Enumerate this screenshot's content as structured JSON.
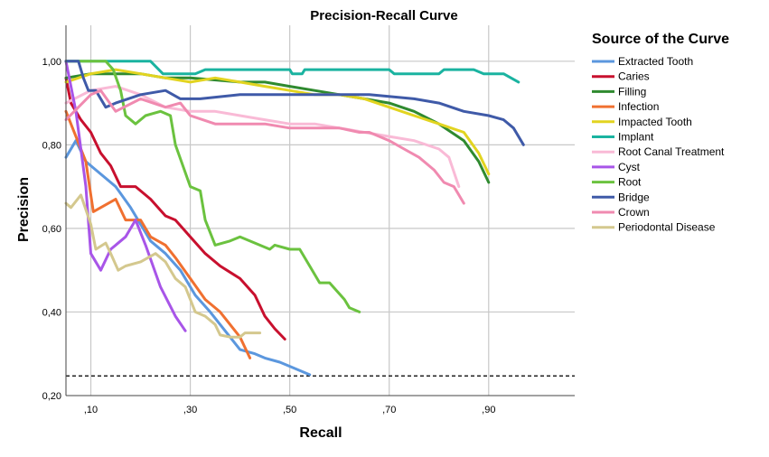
{
  "chart_data": {
    "type": "line",
    "title": "Precision-Recall Curve",
    "xlabel": "Recall",
    "ylabel": "Precision",
    "xlim": [
      0.05,
      1.073
    ],
    "ylim": [
      0.2,
      1.086
    ],
    "xticks": [
      0.1,
      0.3,
      0.5,
      0.7,
      0.9
    ],
    "xtick_labels": [
      ",10",
      ",30",
      ",50",
      ",70",
      ",90"
    ],
    "yticks": [
      0.2,
      0.4,
      0.6,
      0.8,
      1.0
    ],
    "ytick_labels": [
      "0,20",
      "0,40",
      "0,60",
      "0,80",
      "1,00"
    ],
    "grid": true,
    "baseline": 0.247,
    "legend_title": "Source of the Curve",
    "legend_position": "right",
    "series": [
      {
        "name": "Extracted Tooth",
        "color": "#5b97de",
        "x": [
          0.05,
          0.07,
          0.09,
          0.11,
          0.15,
          0.18,
          0.2,
          0.22,
          0.25,
          0.28,
          0.31,
          0.34,
          0.36,
          0.38,
          0.4,
          0.43,
          0.45,
          0.48,
          0.5,
          0.52,
          0.54
        ],
        "y": [
          0.77,
          0.81,
          0.76,
          0.74,
          0.7,
          0.65,
          0.61,
          0.57,
          0.54,
          0.5,
          0.44,
          0.4,
          0.37,
          0.34,
          0.31,
          0.3,
          0.29,
          0.28,
          0.27,
          0.26,
          0.25
        ]
      },
      {
        "name": "Caries",
        "color": "#c8102e",
        "x": [
          0.05,
          0.06,
          0.08,
          0.1,
          0.12,
          0.14,
          0.16,
          0.19,
          0.22,
          0.25,
          0.27,
          0.3,
          0.33,
          0.36,
          0.4,
          0.43,
          0.45,
          0.47,
          0.49
        ],
        "y": [
          0.96,
          0.9,
          0.86,
          0.83,
          0.78,
          0.75,
          0.7,
          0.7,
          0.67,
          0.63,
          0.62,
          0.58,
          0.54,
          0.51,
          0.48,
          0.44,
          0.39,
          0.36,
          0.335
        ]
      },
      {
        "name": "Filling",
        "color": "#2f8a2f",
        "x": [
          0.05,
          0.1,
          0.15,
          0.2,
          0.25,
          0.3,
          0.4,
          0.45,
          0.5,
          0.55,
          0.6,
          0.65,
          0.7,
          0.75,
          0.8,
          0.85,
          0.88,
          0.9
        ],
        "y": [
          0.96,
          0.97,
          0.97,
          0.97,
          0.96,
          0.96,
          0.95,
          0.95,
          0.94,
          0.93,
          0.92,
          0.91,
          0.9,
          0.88,
          0.85,
          0.81,
          0.76,
          0.71
        ]
      },
      {
        "name": "Infection",
        "color": "#f07030",
        "x": [
          0.05,
          0.07,
          0.09,
          0.1,
          0.105,
          0.12,
          0.15,
          0.17,
          0.2,
          0.22,
          0.25,
          0.27,
          0.3,
          0.33,
          0.36,
          0.38,
          0.4,
          0.42
        ],
        "y": [
          0.88,
          0.82,
          0.76,
          0.68,
          0.64,
          0.65,
          0.67,
          0.62,
          0.62,
          0.58,
          0.56,
          0.53,
          0.48,
          0.43,
          0.4,
          0.37,
          0.34,
          0.29
        ]
      },
      {
        "name": "Impacted Tooth",
        "color": "#e2d420",
        "x": [
          0.05,
          0.1,
          0.15,
          0.2,
          0.25,
          0.3,
          0.35,
          0.4,
          0.45,
          0.5,
          0.55,
          0.6,
          0.65,
          0.7,
          0.75,
          0.8,
          0.85,
          0.88,
          0.9
        ],
        "y": [
          0.95,
          0.97,
          0.98,
          0.97,
          0.96,
          0.95,
          0.96,
          0.95,
          0.94,
          0.93,
          0.92,
          0.92,
          0.91,
          0.89,
          0.87,
          0.85,
          0.83,
          0.78,
          0.73
        ]
      },
      {
        "name": "Implant",
        "color": "#1ab3a0",
        "x": [
          0.05,
          0.22,
          0.245,
          0.31,
          0.33,
          0.5,
          0.505,
          0.525,
          0.53,
          0.7,
          0.71,
          0.8,
          0.81,
          0.87,
          0.89,
          0.93,
          0.96
        ],
        "y": [
          1.0,
          1.0,
          0.97,
          0.97,
          0.98,
          0.98,
          0.97,
          0.97,
          0.98,
          0.98,
          0.97,
          0.97,
          0.98,
          0.98,
          0.97,
          0.97,
          0.95
        ]
      },
      {
        "name": "Root Canal Treatment",
        "color": "#f9bad6",
        "x": [
          0.05,
          0.1,
          0.15,
          0.2,
          0.25,
          0.3,
          0.35,
          0.4,
          0.45,
          0.5,
          0.55,
          0.6,
          0.65,
          0.7,
          0.75,
          0.8,
          0.82,
          0.84
        ],
        "y": [
          0.9,
          0.93,
          0.94,
          0.92,
          0.89,
          0.88,
          0.88,
          0.87,
          0.86,
          0.85,
          0.85,
          0.84,
          0.83,
          0.82,
          0.81,
          0.79,
          0.77,
          0.7
        ]
      },
      {
        "name": "Cyst",
        "color": "#a855e8",
        "x": [
          0.05,
          0.07,
          0.09,
          0.1,
          0.12,
          0.14,
          0.17,
          0.19,
          0.21,
          0.24,
          0.27,
          0.29
        ],
        "y": [
          1.0,
          0.88,
          0.7,
          0.54,
          0.5,
          0.55,
          0.58,
          0.62,
          0.56,
          0.46,
          0.39,
          0.355
        ]
      },
      {
        "name": "Root",
        "color": "#6bc23f",
        "x": [
          0.05,
          0.13,
          0.145,
          0.16,
          0.17,
          0.19,
          0.21,
          0.24,
          0.26,
          0.27,
          0.3,
          0.32,
          0.33,
          0.35,
          0.38,
          0.4,
          0.43,
          0.46,
          0.47,
          0.5,
          0.52,
          0.54,
          0.56,
          0.58,
          0.61,
          0.62,
          0.64
        ],
        "y": [
          1.0,
          1.0,
          0.98,
          0.93,
          0.87,
          0.85,
          0.87,
          0.88,
          0.87,
          0.8,
          0.7,
          0.69,
          0.62,
          0.56,
          0.57,
          0.58,
          0.565,
          0.55,
          0.56,
          0.55,
          0.55,
          0.51,
          0.47,
          0.47,
          0.43,
          0.41,
          0.4
        ]
      },
      {
        "name": "Bridge",
        "color": "#3f5aa8",
        "x": [
          0.05,
          0.075,
          0.085,
          0.095,
          0.11,
          0.13,
          0.15,
          0.2,
          0.25,
          0.28,
          0.32,
          0.4,
          0.45,
          0.5,
          0.55,
          0.62,
          0.66,
          0.75,
          0.8,
          0.85,
          0.9,
          0.93,
          0.95,
          0.97
        ],
        "y": [
          1.0,
          1.0,
          0.96,
          0.93,
          0.93,
          0.89,
          0.9,
          0.92,
          0.93,
          0.91,
          0.91,
          0.92,
          0.92,
          0.92,
          0.92,
          0.92,
          0.92,
          0.91,
          0.9,
          0.88,
          0.87,
          0.86,
          0.84,
          0.8
        ]
      },
      {
        "name": "Crown",
        "color": "#f08ab0",
        "x": [
          0.05,
          0.1,
          0.12,
          0.15,
          0.2,
          0.25,
          0.28,
          0.3,
          0.35,
          0.4,
          0.45,
          0.5,
          0.55,
          0.6,
          0.64,
          0.66,
          0.7,
          0.73,
          0.76,
          0.79,
          0.81,
          0.83,
          0.85
        ],
        "y": [
          0.86,
          0.92,
          0.93,
          0.88,
          0.91,
          0.89,
          0.9,
          0.87,
          0.85,
          0.85,
          0.85,
          0.84,
          0.84,
          0.84,
          0.83,
          0.83,
          0.81,
          0.79,
          0.77,
          0.74,
          0.71,
          0.7,
          0.66
        ]
      },
      {
        "name": "Periodontal Disease",
        "color": "#d4c88e",
        "x": [
          0.05,
          0.06,
          0.08,
          0.1,
          0.11,
          0.13,
          0.14,
          0.155,
          0.17,
          0.2,
          0.23,
          0.25,
          0.27,
          0.29,
          0.31,
          0.33,
          0.35,
          0.36,
          0.38,
          0.4,
          0.41,
          0.44
        ],
        "y": [
          0.66,
          0.65,
          0.68,
          0.61,
          0.55,
          0.565,
          0.54,
          0.5,
          0.51,
          0.52,
          0.54,
          0.52,
          0.48,
          0.46,
          0.4,
          0.39,
          0.37,
          0.345,
          0.34,
          0.34,
          0.35,
          0.35
        ]
      }
    ]
  }
}
